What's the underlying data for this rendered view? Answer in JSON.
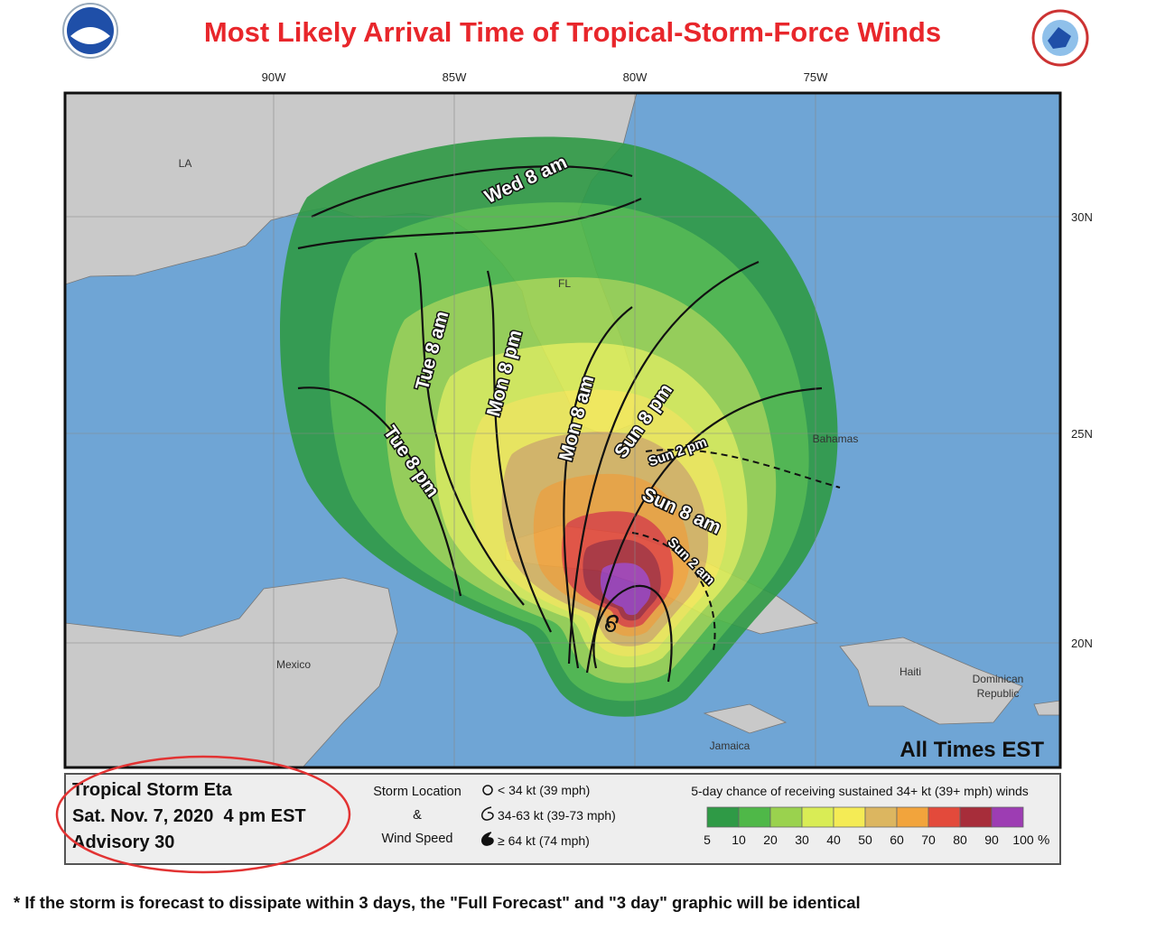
{
  "header": {
    "title": "Most Likely Arrival Time of Tropical-Storm-Force Winds"
  },
  "map": {
    "longitudes": [
      "90W",
      "85W",
      "80W",
      "75W"
    ],
    "latitudes": [
      "30N",
      "25N",
      "20N"
    ],
    "places": [
      "LA",
      "FL",
      "Mexico",
      "Bahamas",
      "Haiti",
      "Jamaica"
    ],
    "place_dominican": [
      "Dominican",
      "Republic"
    ],
    "contour_labels": [
      "Wed 8 am",
      "Tue 8 am",
      "Tue 8 pm",
      "Mon 8 pm",
      "Mon 8 am",
      "Sun 8 pm",
      "Sun 8 am",
      "Sun 2 pm",
      "Sun 2 am"
    ],
    "times_note": "All Times EST"
  },
  "legend": {
    "storm": [
      "Tropical Storm Eta",
      "Sat. Nov. 7, 2020  4 pm EST",
      "Advisory 30"
    ],
    "symbol_heading": [
      "Storm Location",
      "&",
      "Wind Speed"
    ],
    "symbols": [
      "< 34 kt (39 mph)",
      "34-63 kt (39-73 mph)",
      "≥ 64 kt (74 mph)"
    ],
    "scale_title": "5-day chance of receiving sustained 34+ kt (39+ mph) winds",
    "scale_ticks": [
      5,
      10,
      20,
      30,
      40,
      50,
      60,
      70,
      80,
      90,
      100
    ],
    "scale_unit": "%",
    "scale_colors": [
      "#2f9a46",
      "#4fb848",
      "#9ad24e",
      "#d9ec55",
      "#f4eb55",
      "#dcb660",
      "#f2a43c",
      "#e34a3b",
      "#a72d3a",
      "#9d3db3"
    ]
  },
  "footnote": "* If the storm is forecast to dissipate within 3 days, the \"Full Forecast\" and \"3 day\" graphic will be identical"
}
